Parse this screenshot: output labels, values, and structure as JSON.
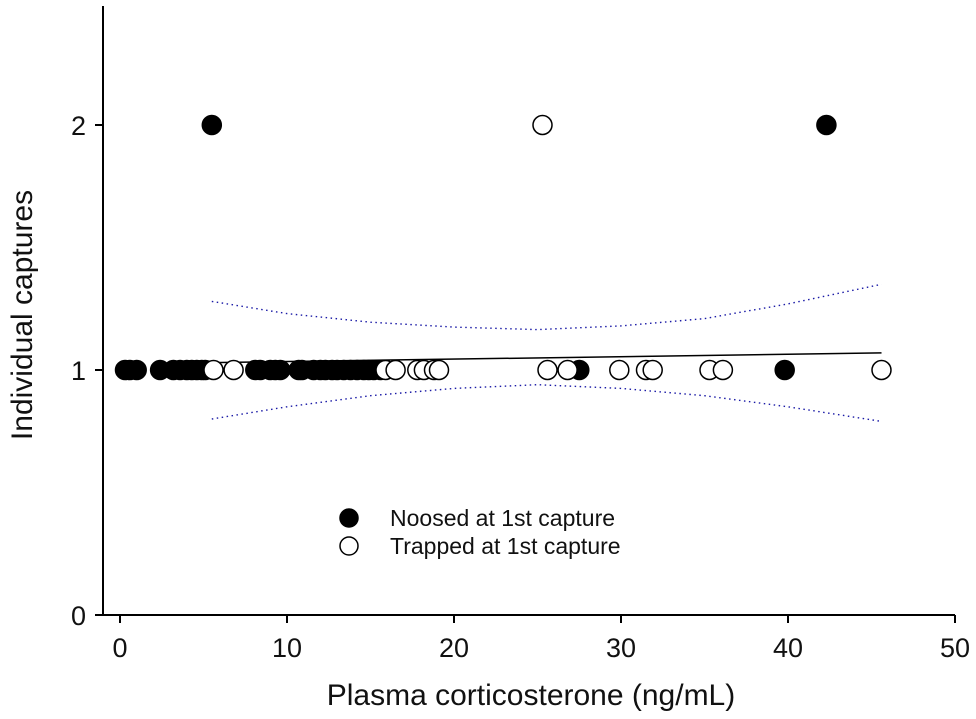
{
  "chart_data": {
    "type": "scatter",
    "xlabel": "Plasma corticosterone (ng/mL)",
    "ylabel": "Individual captures",
    "xlim": [
      0,
      50
    ],
    "ylim": [
      0,
      2.5
    ],
    "x_ticks": [
      0,
      10,
      20,
      30,
      40,
      50
    ],
    "y_ticks": [
      0,
      1,
      2
    ],
    "x_tick_labels": [
      "0",
      "10",
      "20",
      "30",
      "40",
      "50"
    ],
    "y_tick_labels": [
      "0",
      "1",
      "2"
    ],
    "grid": false,
    "legend_position": "bottom-center",
    "colors": {
      "noosed": "#000000",
      "trapped": "#ffffff",
      "fit_line": "#000000",
      "ci_line": "#1a1aa6"
    },
    "series": [
      {
        "name": "Noosed at 1st capture",
        "marker": "filled-circle",
        "points": [
          [
            0.3,
            1
          ],
          [
            0.6,
            1
          ],
          [
            1.0,
            1
          ],
          [
            2.4,
            1
          ],
          [
            3.2,
            1
          ],
          [
            3.6,
            1
          ],
          [
            4.0,
            1
          ],
          [
            4.3,
            1
          ],
          [
            4.6,
            1
          ],
          [
            4.9,
            1
          ],
          [
            5.1,
            1
          ],
          [
            8.1,
            1
          ],
          [
            8.4,
            1
          ],
          [
            9.0,
            1
          ],
          [
            9.3,
            1
          ],
          [
            9.6,
            1
          ],
          [
            10.7,
            1
          ],
          [
            10.9,
            1
          ],
          [
            11.6,
            1
          ],
          [
            12.0,
            1
          ],
          [
            12.3,
            1
          ],
          [
            12.7,
            1
          ],
          [
            13.0,
            1
          ],
          [
            13.4,
            1
          ],
          [
            13.8,
            1
          ],
          [
            14.2,
            1
          ],
          [
            14.6,
            1
          ],
          [
            14.9,
            1
          ],
          [
            15.2,
            1
          ],
          [
            15.6,
            1
          ],
          [
            27.5,
            1
          ],
          [
            39.8,
            1
          ],
          [
            5.5,
            2
          ],
          [
            42.3,
            2
          ]
        ]
      },
      {
        "name": "Trapped at 1st capture",
        "marker": "open-circle",
        "points": [
          [
            5.6,
            1
          ],
          [
            6.8,
            1
          ],
          [
            15.9,
            1
          ],
          [
            16.5,
            1
          ],
          [
            17.8,
            1
          ],
          [
            18.2,
            1
          ],
          [
            18.8,
            1
          ],
          [
            19.1,
            1
          ],
          [
            25.6,
            1
          ],
          [
            26.8,
            1
          ],
          [
            29.9,
            1
          ],
          [
            31.5,
            1
          ],
          [
            31.9,
            1
          ],
          [
            35.3,
            1
          ],
          [
            36.1,
            1
          ],
          [
            45.6,
            1
          ],
          [
            25.3,
            2
          ]
        ]
      }
    ],
    "fit": {
      "regression_line": [
        [
          5.5,
          1.03
        ],
        [
          45.6,
          1.07
        ]
      ],
      "ci_upper": [
        [
          5.5,
          1.28
        ],
        [
          10,
          1.23
        ],
        [
          15,
          1.195
        ],
        [
          20,
          1.175
        ],
        [
          25,
          1.165
        ],
        [
          30,
          1.18
        ],
        [
          35,
          1.21
        ],
        [
          40,
          1.27
        ],
        [
          45.6,
          1.35
        ]
      ],
      "ci_lower": [
        [
          5.5,
          0.8
        ],
        [
          10,
          0.85
        ],
        [
          15,
          0.895
        ],
        [
          20,
          0.925
        ],
        [
          25,
          0.94
        ],
        [
          30,
          0.925
        ],
        [
          35,
          0.895
        ],
        [
          40,
          0.85
        ],
        [
          45.6,
          0.79
        ]
      ]
    }
  }
}
